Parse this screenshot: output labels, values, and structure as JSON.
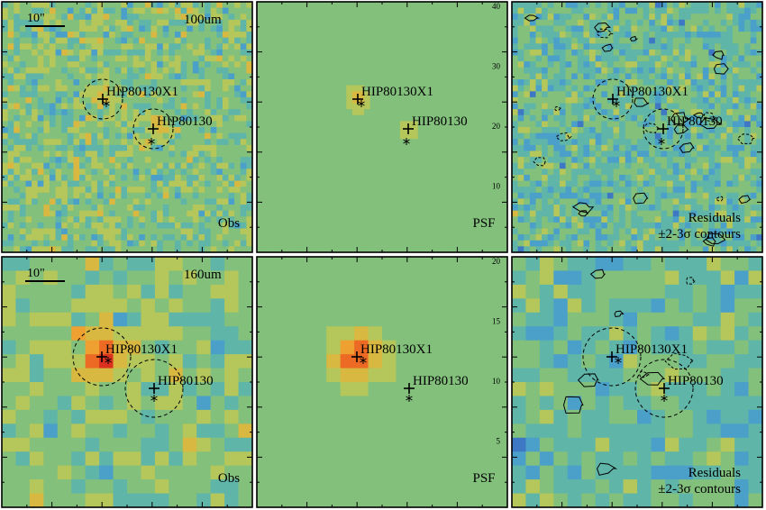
{
  "figure": {
    "bands": [
      {
        "band_label": "100um",
        "scale_bar_label": "10\"",
        "panels": [
          {
            "kind": "obs",
            "corner_label": "Obs",
            "show_circles": true,
            "contours": false
          },
          {
            "kind": "psf",
            "corner_label": "PSF",
            "show_circles": false,
            "contours": false
          },
          {
            "kind": "residual",
            "corner_label": "Residuals",
            "corner_label_2": "±2-3σ contours",
            "show_circles": true,
            "contours": true
          }
        ],
        "tick_labels_right": [
          "40",
          "30",
          "20",
          "10"
        ]
      },
      {
        "band_label": "160um",
        "scale_bar_label": "10\"",
        "panels": [
          {
            "kind": "obs",
            "corner_label": "Obs",
            "show_circles": true,
            "contours": false
          },
          {
            "kind": "psf",
            "corner_label": "PSF",
            "show_circles": false,
            "contours": false
          },
          {
            "kind": "residual",
            "corner_label": "Residuals",
            "corner_label_2": "±2-3σ contours",
            "show_circles": true,
            "contours": true
          }
        ],
        "tick_labels_right": [
          "20",
          "15",
          "10",
          "5"
        ]
      }
    ],
    "sources": [
      {
        "name": "HIP80130X1",
        "marker": "+"
      },
      {
        "name": "HIP80130",
        "marker": "+"
      }
    ],
    "colormap": [
      "#2d0a6e",
      "#3b3fa0",
      "#3e78c4",
      "#4aa0c8",
      "#5fb5a8",
      "#82c07c",
      "#b5c65a",
      "#d8b840",
      "#eea030",
      "#ec6a24",
      "#d93020"
    ]
  }
}
